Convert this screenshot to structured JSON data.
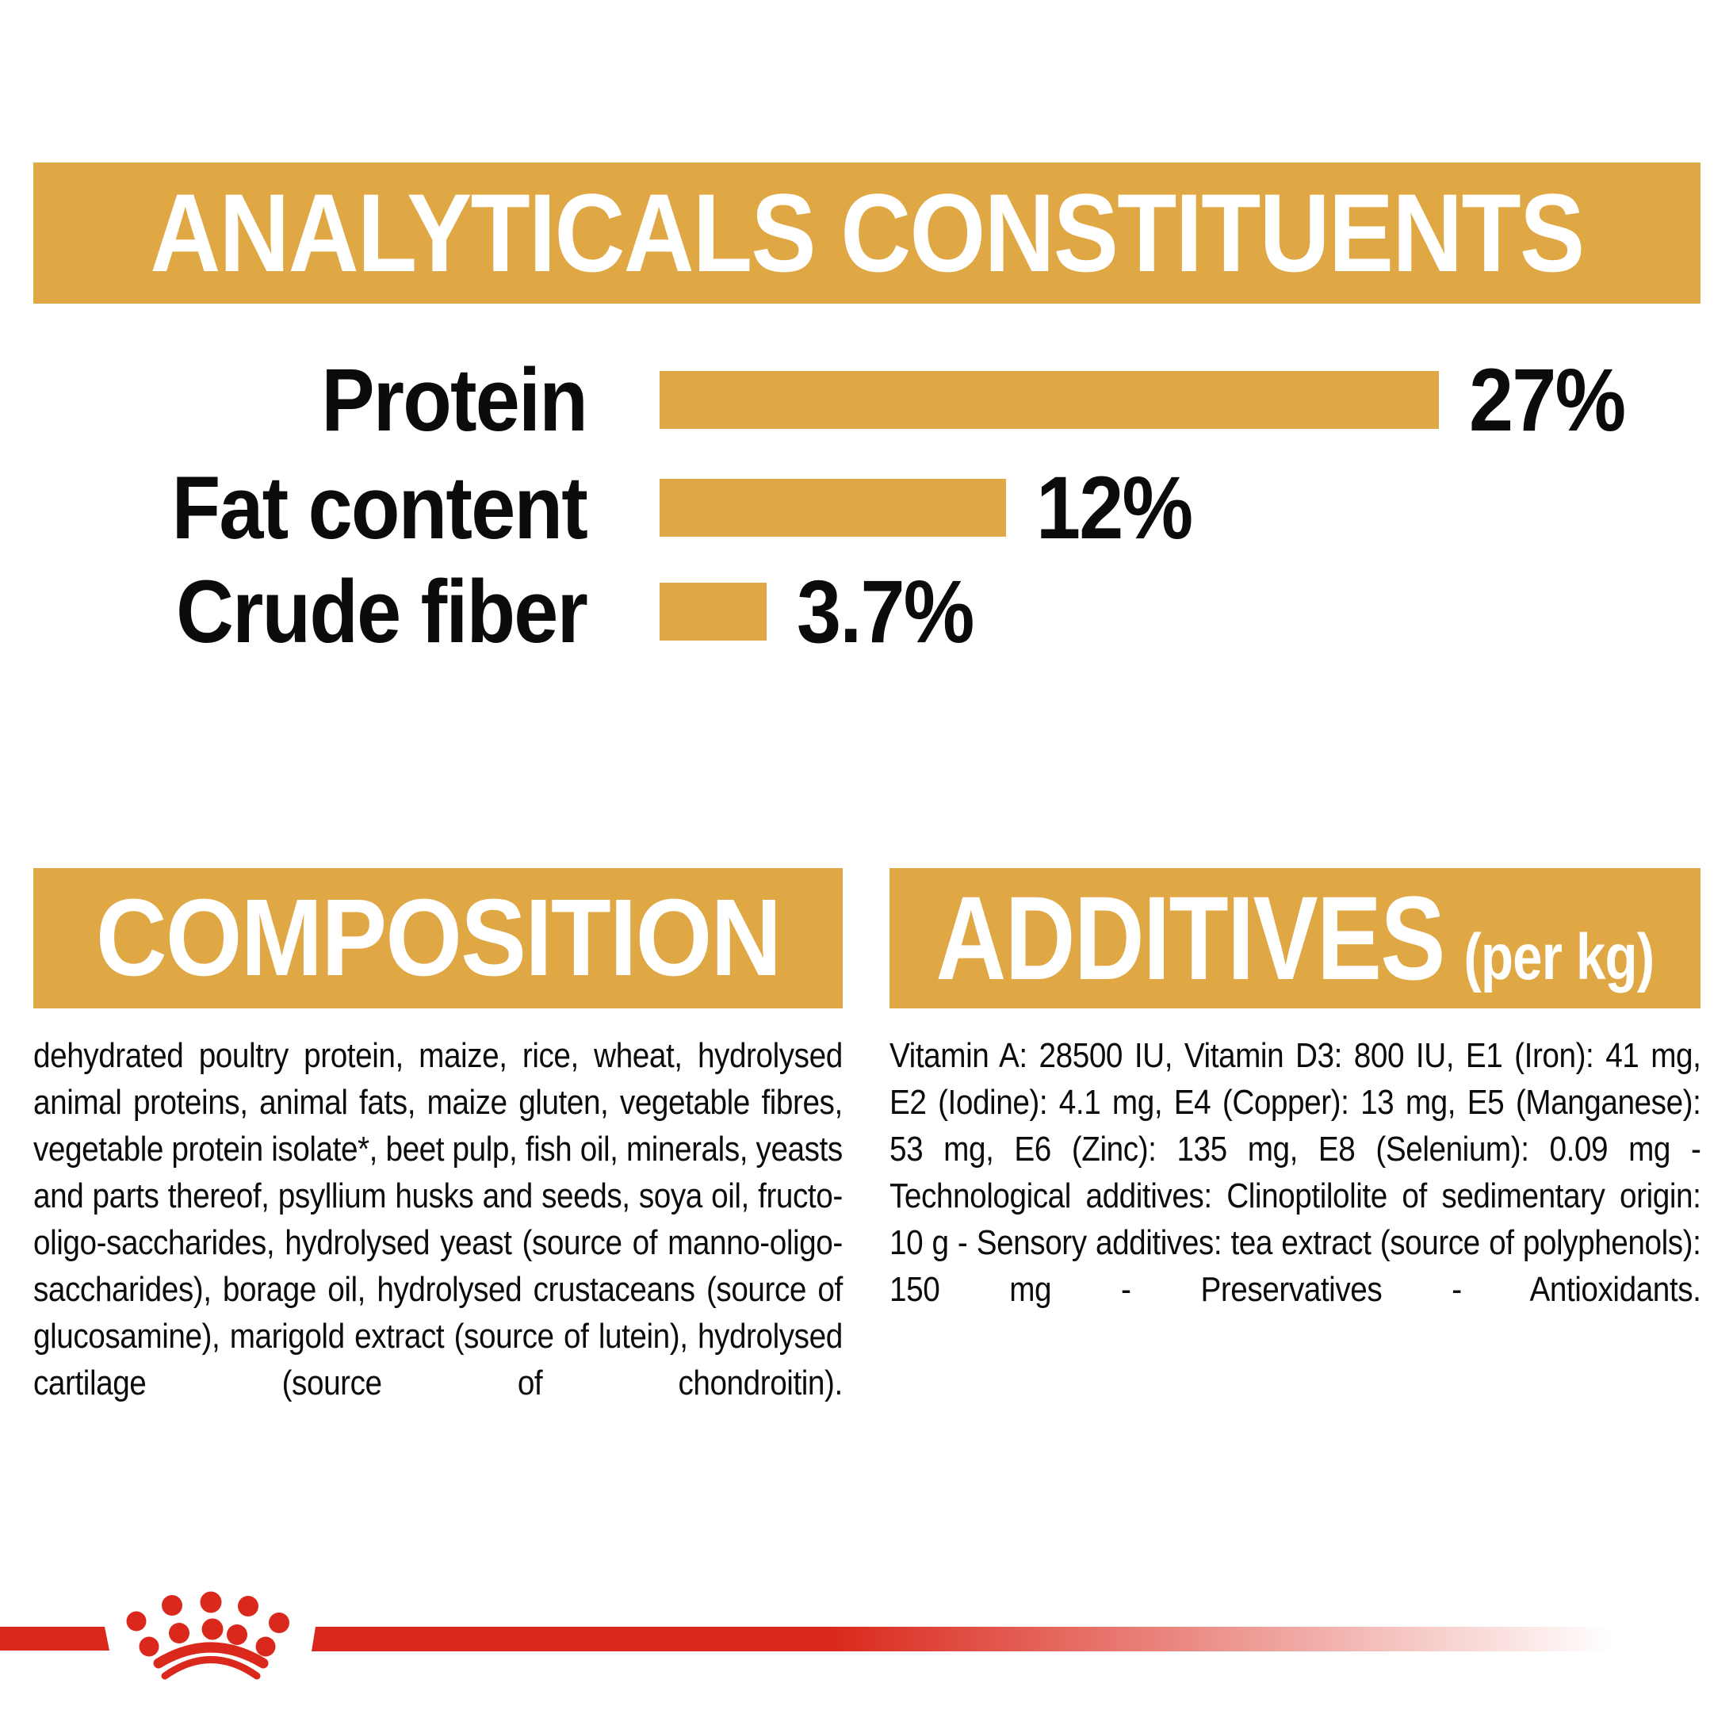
{
  "colors": {
    "gold": "#DFA845",
    "red": "#DA291C",
    "text": "#0C0C0C",
    "banner_text": "#FFFFFF",
    "background": "#FFFFFF"
  },
  "header": {
    "title": "ANALYTICALS CONSTITUENTS"
  },
  "chart_data": {
    "type": "bar",
    "orientation": "horizontal",
    "title": "ANALYTICALS CONSTITUENTS",
    "categories": [
      "Protein",
      "Fat content",
      "Crude fiber"
    ],
    "values": [
      27,
      12,
      3.7
    ],
    "value_labels": [
      "27%",
      "12%",
      "3.7%"
    ],
    "unit": "%",
    "xlim": [
      0,
      30
    ],
    "grid": false,
    "legend": false,
    "bar_color": "#DFA845",
    "value_label_position": "right-of-bar"
  },
  "composition": {
    "title": "COMPOSITION",
    "body": "dehydrated poultry protein, maize, rice, wheat, hydrolysed animal proteins, animal fats, maize gluten, vegetable fibres, vegetable protein isolate*, beet pulp, fish oil, minerals, yeasts and parts thereof, psyllium husks and seeds, soya oil, fructo-oligo-saccharides, hydrolysed yeast (source of manno-oligo-saccharides), borage oil, hydrolysed crustaceans (source of glucosamine), marigold extract (source of lutein), hydrolysed cartilage (source of chondroitin)."
  },
  "additives": {
    "title": "ADDITIVES",
    "title_suffix": "(per kg)",
    "body": "Vitamin A: 28500 IU, Vitamin D3: 800 IU, E1 (Iron): 41 mg, E2 (Iodine): 4.1 mg, E4 (Copper): 13 mg, E5 (Manganese): 53 mg, E6 (Zinc): 135 mg, E8 (Selenium): 0.09 mg - Technological additives: Clinoptilolite of sedimentary origin: 10 g - Sensory additives: tea extract (source of polyphenols): 150 mg - Preservatives - Antioxidants."
  },
  "footer": {
    "logo": "royal-canin-crown"
  }
}
